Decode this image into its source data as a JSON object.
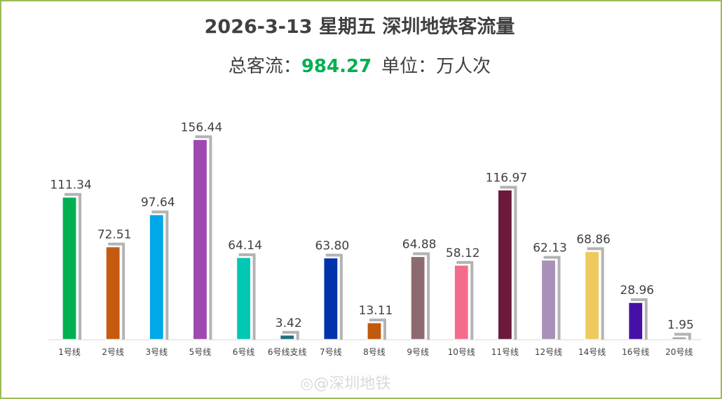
{
  "chart_data": {
    "type": "bar",
    "title": "2026-3-13 星期五  深圳地铁客流量",
    "subtitle_label": "总客流：",
    "subtitle_total": "984.27",
    "subtitle_unit": "单位：万人次",
    "categories": [
      "1号线",
      "2号线",
      "3号线",
      "5号线",
      "6号线",
      "6号线支线",
      "7号线",
      "8号线",
      "9号线",
      "10号线",
      "11号线",
      "12号线",
      "14号线",
      "16号线",
      "20号线"
    ],
    "values": [
      111.34,
      72.51,
      97.64,
      156.44,
      64.14,
      3.42,
      63.8,
      13.11,
      64.88,
      58.12,
      116.97,
      62.13,
      68.86,
      28.96,
      1.95
    ],
    "value_labels": [
      "111.34",
      "72.51",
      "97.64",
      "156.44",
      "64.14",
      "3.42",
      "63.80",
      "13.11",
      "64.88",
      "58.12",
      "116.97",
      "62.13",
      "68.86",
      "28.96",
      "1.95"
    ],
    "colors": [
      "#00b050",
      "#c55a11",
      "#00a8e8",
      "#9e48b0",
      "#00c8b4",
      "#1f6f7f",
      "#0033aa",
      "#c05a0c",
      "#8c6a70",
      "#f46c8c",
      "#6b1a3c",
      "#a890b8",
      "#eec95e",
      "#4410a8",
      "#a0a0a0"
    ],
    "ylim": [
      0,
      170
    ],
    "grid": false,
    "legend": "none"
  },
  "watermark": "◎@深圳地铁"
}
